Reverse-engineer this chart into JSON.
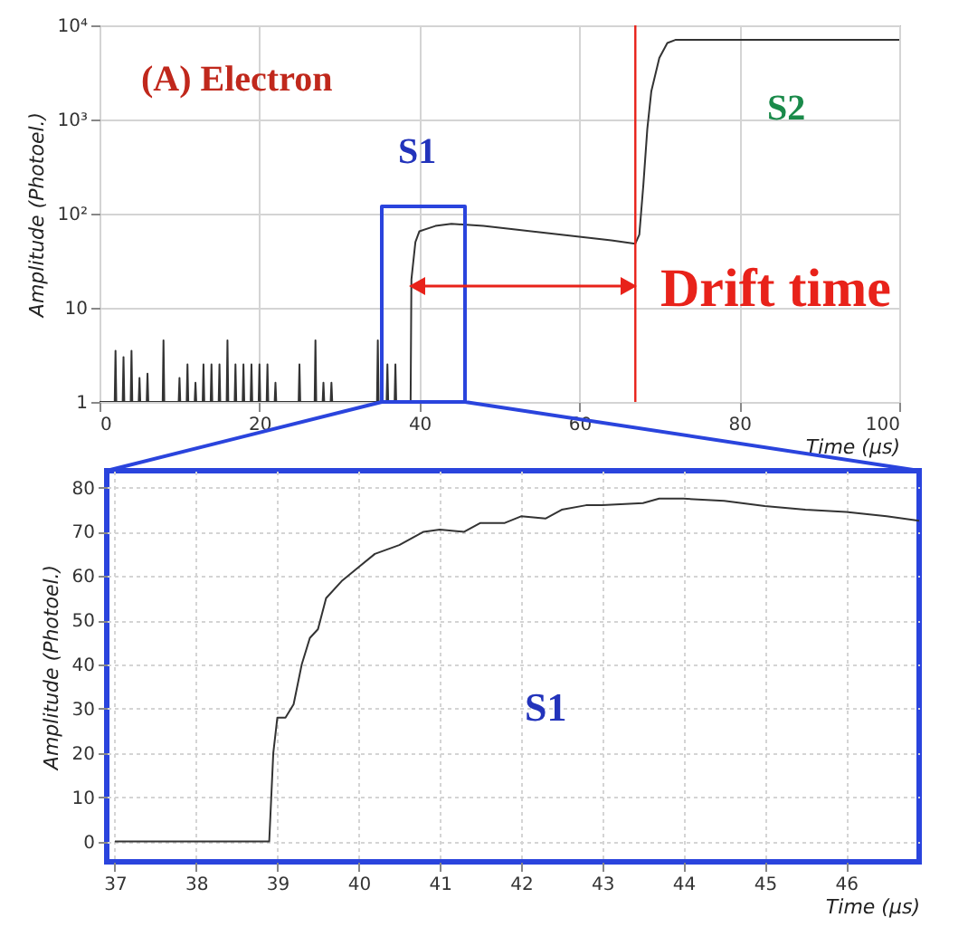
{
  "chart_data": [
    {
      "type": "line",
      "xlabel": "Time (µs)",
      "ylabel": "Amplitude (Photoel.)",
      "log": "y",
      "grid": true,
      "xlim": [
        0,
        100
      ],
      "xticks": [
        0,
        20,
        40,
        60,
        80,
        100
      ],
      "ylim": [
        1,
        10000
      ],
      "yticks": [
        1,
        10,
        {
          "value": 100,
          "label": "10²"
        },
        {
          "value": 1000,
          "label": "10³"
        },
        {
          "value": 10000,
          "label": "10⁴"
        }
      ],
      "series": [
        {
          "color": "#333333",
          "x": [
            0,
            1.9,
            2,
            2.1,
            2.9,
            3,
            3.1,
            3.9,
            4,
            4.1,
            4.9,
            5,
            5.1,
            5.9,
            6,
            6.1,
            7.9,
            8,
            8.1,
            9.9,
            10,
            10.1,
            10.9,
            11,
            11.1,
            11.9,
            12,
            12.1,
            12.9,
            13,
            13.1,
            13.9,
            14,
            14.1,
            14.9,
            15,
            15.1,
            15.9,
            16,
            16.1,
            16.9,
            17,
            17.1,
            17.9,
            18,
            18.1,
            18.9,
            19,
            19.1,
            19.9,
            20,
            20.1,
            20.9,
            21,
            21.1,
            21.9,
            22,
            22.1,
            24.9,
            25,
            25.1,
            26.9,
            27,
            27.1,
            27.9,
            28,
            28.1,
            28.9,
            29,
            29.1,
            34.7,
            34.8,
            34.9,
            35.9,
            36,
            36.1,
            36.9,
            37,
            37.1,
            38.5,
            38.9,
            39,
            39.5,
            40,
            42,
            44,
            48,
            52,
            56,
            60,
            64,
            67,
            67.5,
            68,
            68.5,
            69,
            70,
            71,
            72,
            100
          ],
          "values": [
            1,
            1,
            3.5,
            1,
            1,
            3,
            1,
            1,
            3.5,
            1,
            1,
            1.8,
            1,
            1,
            2,
            1,
            1,
            4.5,
            1,
            1,
            1.8,
            1,
            1,
            2.5,
            1,
            1,
            1.6,
            1,
            1,
            2.5,
            1,
            1,
            2.5,
            1,
            1,
            2.5,
            1,
            1,
            4.5,
            1,
            1,
            2.5,
            1,
            1,
            2.5,
            1,
            1,
            2.5,
            1,
            1,
            2.5,
            1,
            1,
            2.5,
            1,
            1,
            1.6,
            1,
            1,
            2.5,
            1,
            1,
            4.5,
            1,
            1,
            1.6,
            1,
            1,
            1.6,
            1,
            1,
            4.5,
            1,
            1,
            2.5,
            1,
            1,
            2.5,
            1,
            1,
            1,
            20,
            50,
            65,
            74,
            78,
            74,
            68,
            62,
            57,
            52,
            48,
            60,
            200,
            800,
            2000,
            4500,
            6500,
            7000,
            7000
          ]
        }
      ],
      "ref_lines": [
        {
          "axis": "x",
          "value": 67,
          "color": "#e8221a"
        }
      ],
      "annotations": [
        "(A) Electron",
        "S1",
        "S2",
        "Drift time"
      ]
    },
    {
      "type": "line",
      "xlabel": "Time (µs)",
      "ylabel": "Amplitude (Photoel.)",
      "grid": true,
      "xlim": [
        36.9,
        46.9
      ],
      "xticks": [
        37,
        38,
        39,
        40,
        41,
        42,
        43,
        44,
        45,
        46
      ],
      "ylim": [
        -4.6,
        83.8
      ],
      "yticks": [
        0,
        10,
        20,
        30,
        40,
        50,
        60,
        70,
        80
      ],
      "series": [
        {
          "color": "#333333",
          "x": [
            37,
            38.9,
            38.95,
            39,
            39.1,
            39.2,
            39.3,
            39.4,
            39.5,
            39.6,
            39.8,
            40,
            40.2,
            40.5,
            40.8,
            41,
            41.3,
            41.5,
            41.8,
            42,
            42.3,
            42.5,
            42.8,
            43,
            43.5,
            43.7,
            44,
            44.5,
            45,
            45.5,
            46,
            46.5,
            46.9
          ],
          "values": [
            0,
            0,
            20,
            28,
            28,
            31,
            40,
            46,
            48,
            55,
            59,
            62,
            65,
            67,
            70,
            70.5,
            70,
            72,
            72,
            73.5,
            73,
            75,
            76,
            76,
            76.5,
            77.5,
            77.5,
            77,
            75.8,
            75,
            74.5,
            73.5,
            72.5
          ]
        }
      ],
      "annotations": [
        "S1"
      ]
    }
  ]
}
